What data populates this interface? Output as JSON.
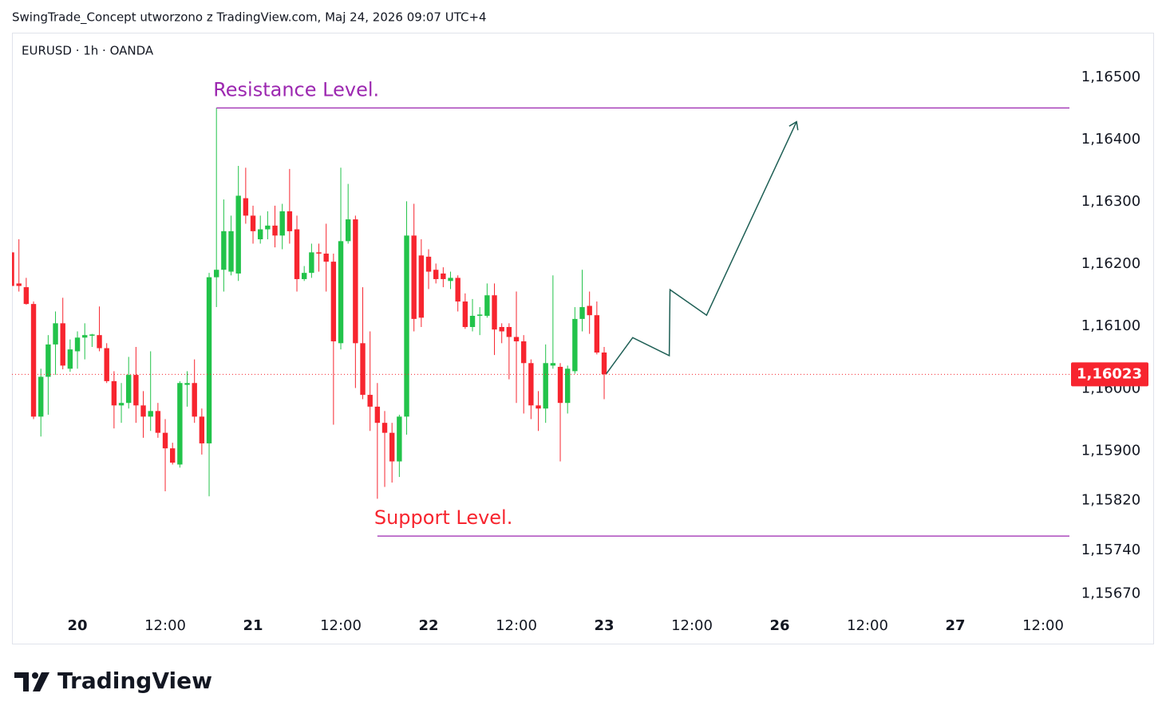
{
  "chart_data": {
    "type": "candlestick",
    "caption": "SwingTrade_Concept utworzono z TradingView.com, Maj 24, 2026 09:07 UTC+4",
    "title": "EURUSD · 1h · OANDA",
    "brand": "TradingView",
    "up_color": "#22c34a",
    "down_color": "#f7252f",
    "x": [
      -9,
      -8,
      -7,
      -6,
      -5,
      -4,
      -3,
      -2,
      -1,
      0,
      1,
      2,
      3,
      4,
      5,
      6,
      7,
      8,
      9,
      10,
      11,
      12,
      13,
      14,
      15,
      16,
      17,
      18,
      19,
      20,
      21,
      22,
      23,
      24,
      25,
      26,
      27,
      28,
      29,
      30,
      31,
      32,
      33,
      34,
      35,
      36,
      37,
      38,
      39,
      40,
      41,
      42,
      43,
      44,
      45,
      46,
      47,
      48,
      49,
      50,
      51,
      52,
      53,
      54,
      55,
      56,
      57,
      58,
      59,
      60,
      61,
      62,
      63,
      64,
      65,
      66,
      67,
      68,
      69,
      70,
      71,
      72
    ],
    "open": [
      1.16219,
      1.16169,
      1.16163,
      1.16136,
      1.15955,
      1.16019,
      1.16071,
      1.16105,
      1.16032,
      1.1606,
      1.16082,
      1.16085,
      1.16086,
      1.16065,
      1.16012,
      1.15973,
      1.15977,
      1.16022,
      1.15973,
      1.15955,
      1.15964,
      1.15929,
      1.15904,
      1.15878,
      1.16006,
      1.16009,
      1.15955,
      1.15912,
      1.16179,
      1.16191,
      1.16188,
      1.16185,
      1.16306,
      1.16278,
      1.1624,
      1.16256,
      1.16262,
      1.16246,
      1.16285,
      1.16256,
      1.16176,
      1.16186,
      1.16219,
      1.16217,
      1.16204,
      1.16073,
      1.16237,
      1.16272,
      1.16073,
      1.1599,
      1.15971,
      1.15945,
      1.15929,
      1.15883,
      1.15955,
      1.16246,
      1.16214,
      1.16212,
      1.16191,
      1.16185,
      1.16173,
      1.16178,
      1.1614,
      1.16099,
      1.16117,
      1.16117,
      1.1615,
      1.16099,
      1.16099,
      1.16083,
      1.16076,
      1.16041,
      1.15973,
      1.15968,
      1.16037,
      1.16035,
      1.15977,
      1.16028,
      1.16112,
      1.16133,
      1.16118,
      1.16058
    ],
    "high": [
      1.16219,
      1.1624,
      1.16178,
      1.1614,
      1.16032,
      1.16086,
      1.16124,
      1.16146,
      1.16079,
      1.16092,
      1.16105,
      1.16088,
      1.16132,
      1.16073,
      1.16028,
      1.16009,
      1.16051,
      1.16067,
      1.15996,
      1.1606,
      1.15977,
      1.15951,
      1.15913,
      1.16012,
      1.16028,
      1.16047,
      1.15968,
      1.16186,
      1.16451,
      1.16304,
      1.16278,
      1.16358,
      1.16355,
      1.16294,
      1.16278,
      1.16285,
      1.16294,
      1.16297,
      1.16353,
      1.16278,
      1.16197,
      1.16233,
      1.16233,
      1.16265,
      1.16217,
      1.16355,
      1.16329,
      1.16278,
      1.16163,
      1.16092,
      1.16009,
      1.15964,
      1.15945,
      1.15958,
      1.16301,
      1.16297,
      1.1624,
      1.16224,
      1.16201,
      1.16195,
      1.16188,
      1.16182,
      1.16153,
      1.16144,
      1.16131,
      1.16169,
      1.16169,
      1.16105,
      1.16105,
      1.16156,
      1.16086,
      1.16047,
      1.15996,
      1.16071,
      1.16182,
      1.16041,
      1.16037,
      1.16131,
      1.16191,
      1.16156,
      1.1614,
      1.16067
    ],
    "low": [
      1.16165,
      1.16156,
      1.16135,
      1.15951,
      1.15923,
      1.15958,
      1.16022,
      1.16031,
      1.16027,
      1.16032,
      1.16047,
      1.16067,
      1.1606,
      1.16009,
      1.15936,
      1.15945,
      1.15968,
      1.15945,
      1.15921,
      1.15932,
      1.15921,
      1.15835,
      1.15878,
      1.15873,
      1.15971,
      1.15945,
      1.15894,
      1.15827,
      1.16131,
      1.16156,
      1.16182,
      1.16173,
      1.16265,
      1.16233,
      1.16233,
      1.1624,
      1.16227,
      1.16224,
      1.16233,
      1.16156,
      1.16173,
      1.16178,
      1.16188,
      1.16156,
      1.15942,
      1.16063,
      1.16233,
      1.16001,
      1.15983,
      1.15932,
      1.15823,
      1.15842,
      1.15849,
      1.15858,
      1.15926,
      1.16092,
      1.16099,
      1.1616,
      1.16169,
      1.16163,
      1.1616,
      1.16124,
      1.16096,
      1.16092,
      1.16086,
      1.16114,
      1.16054,
      1.16073,
      1.16015,
      1.15977,
      1.1596,
      1.15951,
      1.15932,
      1.15945,
      1.16032,
      1.15883,
      1.1596,
      1.16024,
      1.16092,
      1.16088,
      1.16055,
      1.15983
    ],
    "close": [
      1.16165,
      1.16165,
      1.16136,
      1.15955,
      1.16019,
      1.16071,
      1.16105,
      1.16037,
      1.16063,
      1.16082,
      1.16086,
      1.16087,
      1.16065,
      1.16012,
      1.15973,
      1.15977,
      1.16022,
      1.15973,
      1.15955,
      1.15964,
      1.15929,
      1.15904,
      1.15881,
      1.16009,
      1.16009,
      1.15955,
      1.15912,
      1.16179,
      1.16191,
      1.16253,
      1.16253,
      1.1631,
      1.16278,
      1.16253,
      1.16256,
      1.16262,
      1.16246,
      1.16285,
      1.16253,
      1.16176,
      1.16186,
      1.16219,
      1.16217,
      1.16204,
      1.16076,
      1.16237,
      1.16272,
      1.16073,
      1.1599,
      1.15971,
      1.15945,
      1.15929,
      1.15883,
      1.15955,
      1.16246,
      1.16112,
      1.16114,
      1.16188,
      1.16176,
      1.16176,
      1.16178,
      1.1614,
      1.16099,
      1.16117,
      1.16119,
      1.1615,
      1.16095,
      1.16092,
      1.16083,
      1.16076,
      1.16041,
      1.15973,
      1.15968,
      1.16041,
      1.16041,
      1.15977,
      1.16032,
      1.16112,
      1.16131,
      1.16118,
      1.16058,
      1.16023
    ],
    "xlim": [
      -8.95,
      135.6
    ],
    "xticks": [
      {
        "value": 0,
        "label": "20"
      },
      {
        "value": 12,
        "label": "12:00"
      },
      {
        "value": 24,
        "label": "21"
      },
      {
        "value": 36,
        "label": "12:00"
      },
      {
        "value": 48,
        "label": "22"
      },
      {
        "value": 60,
        "label": "12:00"
      },
      {
        "value": 72,
        "label": "23"
      },
      {
        "value": 84,
        "label": "12:00"
      },
      {
        "value": 96,
        "label": "26"
      },
      {
        "value": 108,
        "label": "12:00"
      },
      {
        "value": 120,
        "label": "27"
      },
      {
        "value": 132,
        "label": "12:00"
      }
    ],
    "ylim": [
      1.15644,
      1.16572
    ],
    "yticks": [
      {
        "value": 1.165,
        "label": "1,16500"
      },
      {
        "value": 1.164,
        "label": "1,16400"
      },
      {
        "value": 1.163,
        "label": "1,16300"
      },
      {
        "value": 1.162,
        "label": "1,16200"
      },
      {
        "value": 1.161,
        "label": "1,16100"
      },
      {
        "value": 1.16,
        "label": "1,16000"
      },
      {
        "value": 1.159,
        "label": "1,15900"
      },
      {
        "value": 1.1582,
        "label": "1,15820"
      },
      {
        "value": 1.1574,
        "label": "1,15740"
      },
      {
        "value": 1.1567,
        "label": "1,15670"
      }
    ],
    "last_price": {
      "value": 1.16023,
      "label": "1,16023",
      "color": "#f7252f"
    },
    "levels": [
      {
        "label": "Resistance Level.",
        "value": 1.16451,
        "x_start": 19,
        "color": "#9c27b0",
        "label_color": "#9c27b0"
      },
      {
        "label": "Support Level.",
        "value": 1.15763,
        "x_start": 41,
        "color": "#9c27b0",
        "label_color": "#f7252f"
      }
    ],
    "projection": {
      "x": [
        72.3,
        75.9,
        80.9,
        81.0,
        86.0,
        98.3
      ],
      "y": [
        1.16024,
        1.16082,
        1.16053,
        1.16159,
        1.16118,
        1.16429
      ],
      "color": "#1e5f55"
    }
  }
}
